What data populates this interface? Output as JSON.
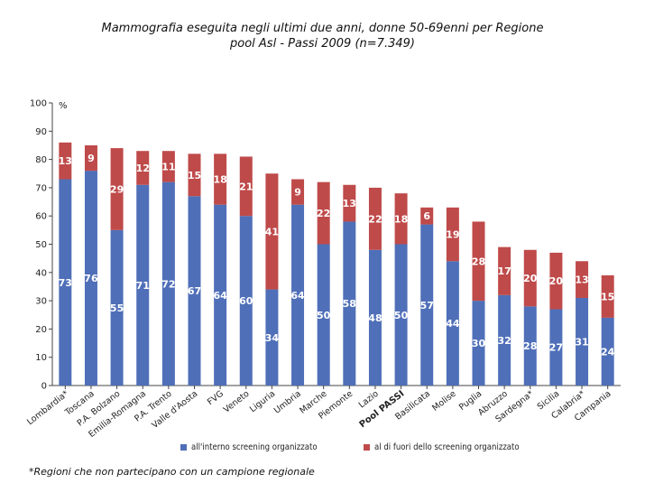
{
  "title_line1": "Mammografia eseguita negli ultimi due anni, donne 50-69enni per Regione",
  "title_line2": "pool Asl - Passi 2009 (n=7.349)",
  "footnote": "*Regioni che non partecipano con un campione regionale",
  "chart_data": {
    "type": "bar",
    "stacked": true,
    "ylabel": "%",
    "ylim": [
      0,
      100
    ],
    "yticks": [
      0,
      10,
      20,
      30,
      40,
      50,
      60,
      70,
      80,
      90,
      100
    ],
    "grid": false,
    "legend_position": "bottom",
    "categories": [
      "Lombardia*",
      "Toscana",
      "P.A. Bolzano",
      "Emilia-Romagna",
      "P.A. Trento",
      "Valle d'Aosta",
      "FVG",
      "Veneto",
      "Liguria",
      "Umbria",
      "Marche",
      "Piemonte",
      "Lazio",
      "Pool PASSI",
      "Basilicata",
      "Molise",
      "Puglia",
      "Abruzzo",
      "Sardegna*",
      "Sicilia",
      "Calabria*",
      "Campania"
    ],
    "highlight_category": "Pool PASSI",
    "series": [
      {
        "name": "all'interno screening organizzato",
        "color": "#4f6fb8",
        "values": [
          73,
          76,
          55,
          71,
          72,
          67,
          64,
          60,
          34,
          64,
          50,
          58,
          48,
          50,
          57,
          44,
          30,
          32,
          28,
          27,
          31,
          24
        ]
      },
      {
        "name": "al di fuori dello screening organizzato",
        "color": "#bf4a4a",
        "values": [
          13,
          9,
          29,
          12,
          11,
          15,
          18,
          21,
          41,
          9,
          22,
          13,
          22,
          18,
          6,
          19,
          28,
          17,
          20,
          20,
          13,
          15
        ]
      }
    ]
  }
}
